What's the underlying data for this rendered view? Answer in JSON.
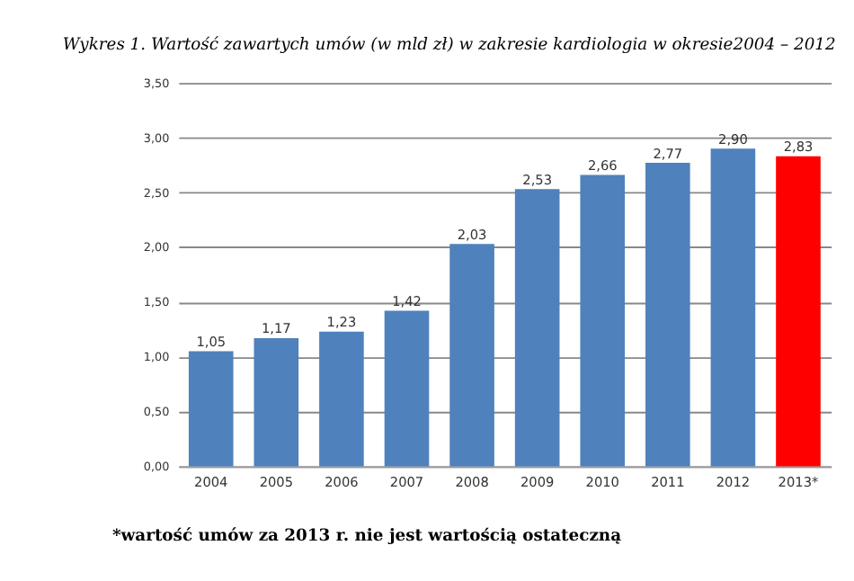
{
  "chart_data": {
    "type": "bar",
    "title": "Wykres 1. Wartość zawartych umów (w mld zł) w zakresie kardiologia w okresie2004 – 2012",
    "categories": [
      "2004",
      "2005",
      "2006",
      "2007",
      "2008",
      "2009",
      "2010",
      "2011",
      "2012",
      "2013*"
    ],
    "values": [
      1.05,
      1.17,
      1.23,
      1.42,
      2.03,
      2.53,
      2.66,
      2.77,
      2.9,
      2.83
    ],
    "value_labels": [
      "1,05",
      "1,17",
      "1,23",
      "1,42",
      "2,03",
      "2,53",
      "2,66",
      "2,77",
      "2,90",
      "2,83"
    ],
    "colors": [
      "#4f81bd",
      "#4f81bd",
      "#4f81bd",
      "#4f81bd",
      "#4f81bd",
      "#4f81bd",
      "#4f81bd",
      "#4f81bd",
      "#4f81bd",
      "#ff0000"
    ],
    "ylim": [
      0,
      3.5
    ],
    "yticks": [
      {
        "value": 0,
        "label": "0,00"
      },
      {
        "value": 0.5,
        "label": "0,50"
      },
      {
        "value": 1,
        "label": "1,00"
      },
      {
        "value": 1.5,
        "label": "1,50"
      },
      {
        "value": 2,
        "label": "2,00"
      },
      {
        "value": 2.5,
        "label": "2,50"
      },
      {
        "value": 3,
        "label": "3,00"
      },
      {
        "value": 3.5,
        "label": "3,50"
      }
    ],
    "grid": "y",
    "annotations": [
      "*wartość umów za 2013 r. nie jest wartością ostateczną"
    ]
  }
}
